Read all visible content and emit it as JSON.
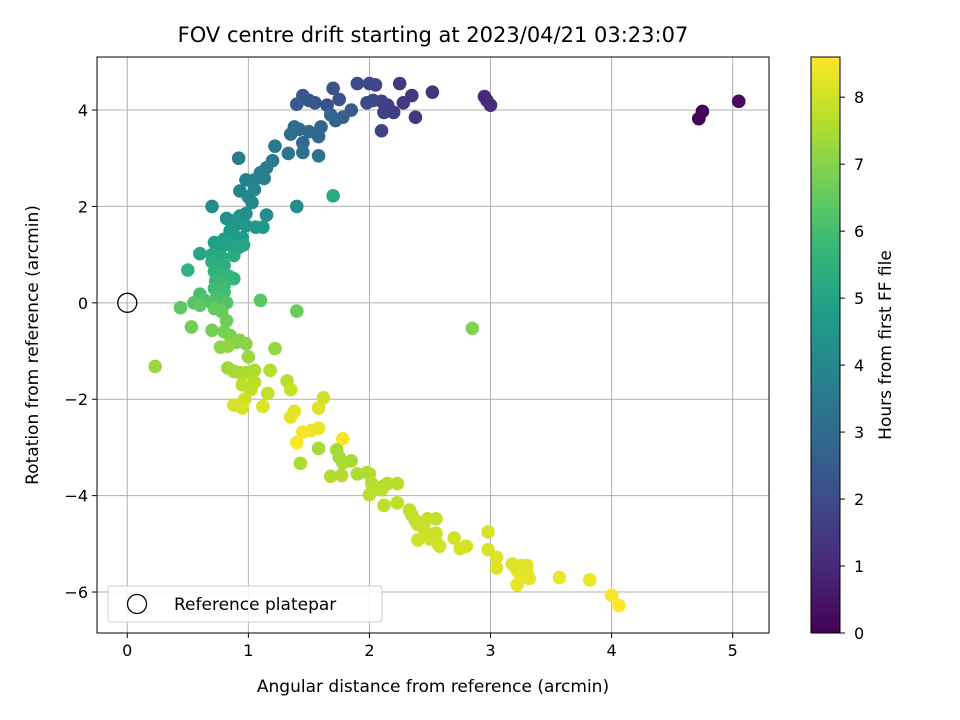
{
  "chart_data": {
    "type": "scatter",
    "title": "FOV centre drift starting at 2023/04/21 03:23:07",
    "xlabel": "Angular distance from reference (arcmin)",
    "ylabel": "Rotation from reference (arcmin)",
    "xlim": [
      -0.25,
      5.3
    ],
    "ylim": [
      -6.85,
      5.1
    ],
    "xticks": [
      0,
      1,
      2,
      3,
      4,
      5
    ],
    "yticks": [
      -6,
      -4,
      -2,
      0,
      2,
      4
    ],
    "grid": true,
    "legend": {
      "label": "Reference platepar",
      "placement": "bottom-left"
    },
    "reference_point": {
      "x": 0,
      "y": 0
    },
    "colorbar": {
      "label": "Hours from first FF file",
      "range": [
        0,
        8.6
      ],
      "ticks": [
        0,
        1,
        2,
        3,
        4,
        5,
        6,
        7,
        8
      ],
      "colormap": "viridis",
      "colors": [
        "#440154",
        "#482878",
        "#3e4989",
        "#31688e",
        "#26828e",
        "#1f9e89",
        "#35b779",
        "#6ece58",
        "#b5de2b",
        "#fde725"
      ]
    },
    "points": [
      {
        "x": 4.72,
        "y": 3.82,
        "c": 0.05
      },
      {
        "x": 4.75,
        "y": 3.97,
        "c": 0.1
      },
      {
        "x": 5.05,
        "y": 4.18,
        "c": 0.25
      },
      {
        "x": 2.95,
        "y": 4.28,
        "c": 1.0
      },
      {
        "x": 2.97,
        "y": 4.2,
        "c": 1.05
      },
      {
        "x": 3.0,
        "y": 4.1,
        "c": 1.1
      },
      {
        "x": 2.52,
        "y": 4.37,
        "c": 1.3
      },
      {
        "x": 2.38,
        "y": 3.85,
        "c": 1.35
      },
      {
        "x": 2.35,
        "y": 4.3,
        "c": 1.4
      },
      {
        "x": 2.28,
        "y": 4.15,
        "c": 1.45
      },
      {
        "x": 2.25,
        "y": 4.55,
        "c": 1.5
      },
      {
        "x": 2.2,
        "y": 3.95,
        "c": 1.55
      },
      {
        "x": 2.15,
        "y": 4.1,
        "c": 1.6
      },
      {
        "x": 2.12,
        "y": 3.95,
        "c": 1.65
      },
      {
        "x": 2.1,
        "y": 4.18,
        "c": 1.7
      },
      {
        "x": 2.1,
        "y": 3.57,
        "c": 1.75
      },
      {
        "x": 2.05,
        "y": 4.52,
        "c": 1.8
      },
      {
        "x": 2.03,
        "y": 4.2,
        "c": 1.85
      },
      {
        "x": 2.0,
        "y": 4.55,
        "c": 1.9
      },
      {
        "x": 1.98,
        "y": 4.15,
        "c": 1.95
      },
      {
        "x": 1.9,
        "y": 4.55,
        "c": 2.0
      },
      {
        "x": 1.75,
        "y": 4.22,
        "c": 2.1
      },
      {
        "x": 1.7,
        "y": 4.45,
        "c": 2.15
      },
      {
        "x": 1.65,
        "y": 4.1,
        "c": 2.2
      },
      {
        "x": 1.55,
        "y": 4.15,
        "c": 2.25
      },
      {
        "x": 1.5,
        "y": 4.2,
        "c": 2.3
      },
      {
        "x": 1.45,
        "y": 4.3,
        "c": 2.35
      },
      {
        "x": 1.4,
        "y": 4.12,
        "c": 2.4
      },
      {
        "x": 1.85,
        "y": 4.0,
        "c": 2.5
      },
      {
        "x": 1.78,
        "y": 3.85,
        "c": 2.6
      },
      {
        "x": 1.72,
        "y": 3.78,
        "c": 2.7
      },
      {
        "x": 1.68,
        "y": 3.9,
        "c": 2.75
      },
      {
        "x": 1.6,
        "y": 3.65,
        "c": 2.8
      },
      {
        "x": 1.58,
        "y": 3.45,
        "c": 2.85
      },
      {
        "x": 1.5,
        "y": 3.55,
        "c": 2.9
      },
      {
        "x": 1.45,
        "y": 3.32,
        "c": 2.95
      },
      {
        "x": 1.42,
        "y": 3.6,
        "c": 3.0
      },
      {
        "x": 1.38,
        "y": 3.65,
        "c": 3.05
      },
      {
        "x": 1.35,
        "y": 3.5,
        "c": 3.1
      },
      {
        "x": 1.45,
        "y": 3.12,
        "c": 3.2
      },
      {
        "x": 1.58,
        "y": 3.05,
        "c": 3.3
      },
      {
        "x": 1.33,
        "y": 3.1,
        "c": 3.35
      },
      {
        "x": 1.22,
        "y": 3.25,
        "c": 3.4
      },
      {
        "x": 1.2,
        "y": 2.95,
        "c": 3.5
      },
      {
        "x": 1.15,
        "y": 2.8,
        "c": 3.55
      },
      {
        "x": 1.1,
        "y": 2.7,
        "c": 3.6
      },
      {
        "x": 0.92,
        "y": 3.0,
        "c": 3.65
      },
      {
        "x": 1.13,
        "y": 2.58,
        "c": 3.7
      },
      {
        "x": 1.05,
        "y": 2.55,
        "c": 3.75
      },
      {
        "x": 0.98,
        "y": 2.55,
        "c": 3.8
      },
      {
        "x": 0.93,
        "y": 2.32,
        "c": 3.9
      },
      {
        "x": 1.05,
        "y": 2.35,
        "c": 3.95
      },
      {
        "x": 1.0,
        "y": 2.2,
        "c": 4.0
      },
      {
        "x": 1.03,
        "y": 2.08,
        "c": 4.05
      },
      {
        "x": 0.7,
        "y": 2.0,
        "c": 4.1
      },
      {
        "x": 1.4,
        "y": 2.0,
        "c": 4.15
      },
      {
        "x": 1.15,
        "y": 1.82,
        "c": 4.2
      },
      {
        "x": 0.98,
        "y": 1.85,
        "c": 4.25
      },
      {
        "x": 0.93,
        "y": 1.8,
        "c": 4.3
      },
      {
        "x": 0.82,
        "y": 1.75,
        "c": 4.35
      },
      {
        "x": 0.87,
        "y": 1.7,
        "c": 4.4
      },
      {
        "x": 0.92,
        "y": 1.65,
        "c": 4.45
      },
      {
        "x": 0.98,
        "y": 1.6,
        "c": 4.5
      },
      {
        "x": 1.06,
        "y": 1.57,
        "c": 4.55
      },
      {
        "x": 1.12,
        "y": 1.57,
        "c": 4.6
      },
      {
        "x": 0.85,
        "y": 1.5,
        "c": 4.65
      },
      {
        "x": 0.88,
        "y": 1.42,
        "c": 4.7
      },
      {
        "x": 0.95,
        "y": 1.35,
        "c": 4.75
      },
      {
        "x": 0.8,
        "y": 1.32,
        "c": 4.8
      },
      {
        "x": 0.72,
        "y": 1.25,
        "c": 4.85
      },
      {
        "x": 0.78,
        "y": 1.17,
        "c": 4.9
      },
      {
        "x": 0.85,
        "y": 1.2,
        "c": 4.95
      },
      {
        "x": 0.92,
        "y": 1.15,
        "c": 5.0
      },
      {
        "x": 0.96,
        "y": 1.2,
        "c": 5.05
      },
      {
        "x": 0.6,
        "y": 1.02,
        "c": 5.1
      },
      {
        "x": 0.7,
        "y": 1.0,
        "c": 5.15
      },
      {
        "x": 0.78,
        "y": 0.95,
        "c": 5.2
      },
      {
        "x": 0.88,
        "y": 0.98,
        "c": 5.25
      },
      {
        "x": 1.7,
        "y": 2.22,
        "c": 5.3
      },
      {
        "x": 0.7,
        "y": 0.85,
        "c": 5.35
      },
      {
        "x": 0.73,
        "y": 0.75,
        "c": 5.4
      },
      {
        "x": 0.8,
        "y": 0.78,
        "c": 5.45
      },
      {
        "x": 0.5,
        "y": 0.68,
        "c": 5.5
      },
      {
        "x": 0.72,
        "y": 0.65,
        "c": 5.55
      },
      {
        "x": 0.78,
        "y": 0.55,
        "c": 5.6
      },
      {
        "x": 0.84,
        "y": 0.55,
        "c": 5.65
      },
      {
        "x": 0.88,
        "y": 0.5,
        "c": 5.7
      },
      {
        "x": 0.73,
        "y": 0.45,
        "c": 5.75
      },
      {
        "x": 0.77,
        "y": 0.4,
        "c": 5.8
      },
      {
        "x": 0.8,
        "y": 0.35,
        "c": 5.85
      },
      {
        "x": 0.72,
        "y": 0.3,
        "c": 5.9
      },
      {
        "x": 0.8,
        "y": 0.22,
        "c": 5.95
      },
      {
        "x": 0.6,
        "y": 0.18,
        "c": 6.0
      },
      {
        "x": 0.76,
        "y": 0.15,
        "c": 6.05
      },
      {
        "x": 0.73,
        "y": 0.08,
        "c": 6.1
      },
      {
        "x": 0.64,
        "y": 0.05,
        "c": 6.15
      },
      {
        "x": 0.7,
        "y": 0.0,
        "c": 6.2
      },
      {
        "x": 0.82,
        "y": 0.0,
        "c": 6.25
      },
      {
        "x": 0.55,
        "y": 0.0,
        "c": 6.3
      },
      {
        "x": 1.1,
        "y": 0.05,
        "c": 6.35
      },
      {
        "x": 0.44,
        "y": -0.1,
        "c": 6.4
      },
      {
        "x": 0.6,
        "y": -0.05,
        "c": 6.45
      },
      {
        "x": 0.72,
        "y": -0.12,
        "c": 6.5
      },
      {
        "x": 0.78,
        "y": -0.18,
        "c": 6.55
      },
      {
        "x": 1.4,
        "y": -0.17,
        "c": 6.6
      },
      {
        "x": 0.82,
        "y": -0.37,
        "c": 6.65
      },
      {
        "x": 0.53,
        "y": -0.5,
        "c": 6.7
      },
      {
        "x": 0.7,
        "y": -0.57,
        "c": 6.75
      },
      {
        "x": 0.8,
        "y": -0.6,
        "c": 6.8
      },
      {
        "x": 0.85,
        "y": -0.68,
        "c": 6.85
      },
      {
        "x": 2.85,
        "y": -0.53,
        "c": 6.9
      },
      {
        "x": 0.9,
        "y": -0.82,
        "c": 6.95
      },
      {
        "x": 0.93,
        "y": -0.78,
        "c": 7.0
      },
      {
        "x": 0.98,
        "y": -0.85,
        "c": 7.05
      },
      {
        "x": 0.77,
        "y": -0.92,
        "c": 7.1
      },
      {
        "x": 0.83,
        "y": -0.9,
        "c": 7.15
      },
      {
        "x": 1.22,
        "y": -0.95,
        "c": 7.2
      },
      {
        "x": 1.0,
        "y": -1.12,
        "c": 7.25
      },
      {
        "x": 0.23,
        "y": -1.32,
        "c": 7.3
      },
      {
        "x": 0.83,
        "y": -1.35,
        "c": 7.35
      },
      {
        "x": 0.88,
        "y": -1.42,
        "c": 7.4
      },
      {
        "x": 0.93,
        "y": -1.45,
        "c": 7.45
      },
      {
        "x": 0.98,
        "y": -1.45,
        "c": 7.5
      },
      {
        "x": 1.05,
        "y": -1.4,
        "c": 7.55
      },
      {
        "x": 1.18,
        "y": -1.4,
        "c": 7.6
      },
      {
        "x": 1.32,
        "y": -1.62,
        "c": 7.65
      },
      {
        "x": 1.05,
        "y": -1.65,
        "c": 7.7
      },
      {
        "x": 0.95,
        "y": -1.7,
        "c": 7.75
      },
      {
        "x": 1.02,
        "y": -1.8,
        "c": 7.8
      },
      {
        "x": 1.16,
        "y": -1.88,
        "c": 7.85
      },
      {
        "x": 1.35,
        "y": -1.8,
        "c": 7.9
      },
      {
        "x": 0.97,
        "y": -2.0,
        "c": 7.95
      },
      {
        "x": 1.62,
        "y": -1.97,
        "c": 8.0
      },
      {
        "x": 0.88,
        "y": -2.12,
        "c": 8.05
      },
      {
        "x": 0.95,
        "y": -2.18,
        "c": 8.1
      },
      {
        "x": 1.12,
        "y": -2.15,
        "c": 8.15
      },
      {
        "x": 1.58,
        "y": -2.18,
        "c": 8.2
      },
      {
        "x": 1.38,
        "y": -2.25,
        "c": 8.25
      },
      {
        "x": 1.35,
        "y": -2.37,
        "c": 8.3
      },
      {
        "x": 1.58,
        "y": -2.6,
        "c": 8.35
      },
      {
        "x": 1.52,
        "y": -2.65,
        "c": 8.4
      },
      {
        "x": 1.45,
        "y": -2.68,
        "c": 8.45
      },
      {
        "x": 1.78,
        "y": -2.82,
        "c": 8.5
      },
      {
        "x": 1.4,
        "y": -2.9,
        "c": 8.55
      }
    ],
    "points_late": [
      {
        "x": 1.58,
        "y": -3.02,
        "c": 7.4
      },
      {
        "x": 1.73,
        "y": -3.05,
        "c": 7.42
      },
      {
        "x": 1.75,
        "y": -3.2,
        "c": 7.44
      },
      {
        "x": 1.85,
        "y": -3.28,
        "c": 7.46
      },
      {
        "x": 1.43,
        "y": -3.33,
        "c": 7.48
      },
      {
        "x": 1.78,
        "y": -3.32,
        "c": 7.5
      },
      {
        "x": 1.9,
        "y": -3.55,
        "c": 7.52
      },
      {
        "x": 1.98,
        "y": -3.52,
        "c": 7.54
      },
      {
        "x": 2.0,
        "y": -3.55,
        "c": 7.56
      },
      {
        "x": 1.68,
        "y": -3.6,
        "c": 7.58
      },
      {
        "x": 1.77,
        "y": -3.58,
        "c": 7.6
      },
      {
        "x": 2.02,
        "y": -3.75,
        "c": 7.62
      },
      {
        "x": 2.12,
        "y": -3.8,
        "c": 7.64
      },
      {
        "x": 2.15,
        "y": -3.75,
        "c": 7.66
      },
      {
        "x": 2.23,
        "y": -3.75,
        "c": 7.68
      },
      {
        "x": 2.1,
        "y": -3.88,
        "c": 7.7
      },
      {
        "x": 2.0,
        "y": -3.98,
        "c": 7.72
      },
      {
        "x": 2.23,
        "y": -4.15,
        "c": 7.74
      },
      {
        "x": 2.12,
        "y": -4.2,
        "c": 7.76
      },
      {
        "x": 2.33,
        "y": -4.3,
        "c": 7.78
      },
      {
        "x": 2.35,
        "y": -4.4,
        "c": 7.8
      },
      {
        "x": 2.38,
        "y": -4.52,
        "c": 7.82
      },
      {
        "x": 2.48,
        "y": -4.48,
        "c": 7.84
      },
      {
        "x": 2.55,
        "y": -4.48,
        "c": 7.86
      },
      {
        "x": 2.4,
        "y": -4.6,
        "c": 7.88
      },
      {
        "x": 2.45,
        "y": -4.68,
        "c": 7.9
      },
      {
        "x": 2.55,
        "y": -4.78,
        "c": 7.92
      },
      {
        "x": 2.48,
        "y": -4.85,
        "c": 7.94
      },
      {
        "x": 2.4,
        "y": -4.92,
        "c": 7.96
      },
      {
        "x": 2.5,
        "y": -4.9,
        "c": 7.98
      },
      {
        "x": 2.55,
        "y": -4.95,
        "c": 8.0
      },
      {
        "x": 2.58,
        "y": -5.05,
        "c": 8.02
      },
      {
        "x": 2.7,
        "y": -4.88,
        "c": 8.04
      },
      {
        "x": 2.75,
        "y": -5.1,
        "c": 8.06
      },
      {
        "x": 2.8,
        "y": -5.05,
        "c": 8.08
      },
      {
        "x": 2.98,
        "y": -4.75,
        "c": 8.1
      },
      {
        "x": 2.98,
        "y": -5.12,
        "c": 8.12
      },
      {
        "x": 3.05,
        "y": -5.28,
        "c": 8.14
      },
      {
        "x": 3.05,
        "y": -5.5,
        "c": 8.16
      },
      {
        "x": 3.18,
        "y": -5.42,
        "c": 8.18
      },
      {
        "x": 3.25,
        "y": -5.45,
        "c": 8.2
      },
      {
        "x": 3.3,
        "y": -5.45,
        "c": 8.22
      },
      {
        "x": 3.22,
        "y": -5.55,
        "c": 8.24
      },
      {
        "x": 3.3,
        "y": -5.6,
        "c": 8.26
      },
      {
        "x": 3.25,
        "y": -5.7,
        "c": 8.28
      },
      {
        "x": 3.32,
        "y": -5.72,
        "c": 8.3
      },
      {
        "x": 3.22,
        "y": -5.85,
        "c": 8.32
      },
      {
        "x": 3.57,
        "y": -5.7,
        "c": 8.36
      },
      {
        "x": 3.82,
        "y": -5.75,
        "c": 8.4
      },
      {
        "x": 4.0,
        "y": -6.07,
        "c": 8.5
      },
      {
        "x": 4.06,
        "y": -6.28,
        "c": 8.58
      }
    ]
  }
}
